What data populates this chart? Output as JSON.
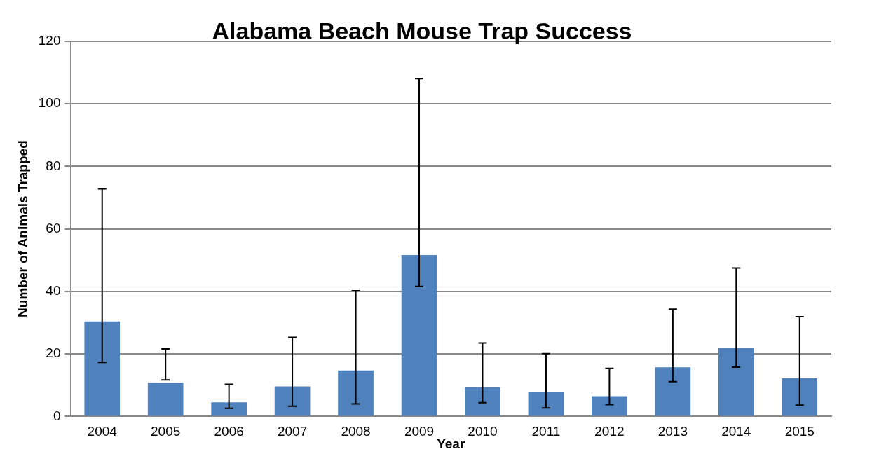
{
  "chart_data": {
    "type": "bar",
    "title": "Alabama Beach Mouse Trap Success",
    "xlabel": "Year",
    "ylabel": "Number of Animals Trapped",
    "categories": [
      "2004",
      "2005",
      "2006",
      "2007",
      "2008",
      "2009",
      "2010",
      "2011",
      "2012",
      "2013",
      "2014",
      "2015"
    ],
    "values": [
      30.4,
      10.8,
      4.5,
      9.6,
      14.7,
      51.6,
      9.4,
      7.7,
      6.5,
      15.7,
      22.0,
      12.2
    ],
    "errors": [
      [
        17.3,
        72.8
      ],
      [
        11.7,
        21.6
      ],
      [
        2.6,
        10.3
      ],
      [
        3.3,
        25.3
      ],
      [
        4.0,
        40.2
      ],
      [
        41.6,
        108.0
      ],
      [
        4.4,
        23.5
      ],
      [
        2.7,
        20.1
      ],
      [
        3.8,
        15.4
      ],
      [
        11.1,
        34.3
      ],
      [
        15.8,
        47.5
      ],
      [
        3.6,
        31.9
      ]
    ],
    "color": "#4f81bd",
    "ylim": [
      0,
      120
    ],
    "yticks": [
      0,
      20,
      40,
      60,
      80,
      100,
      120
    ],
    "grid": "y",
    "legend": false
  }
}
